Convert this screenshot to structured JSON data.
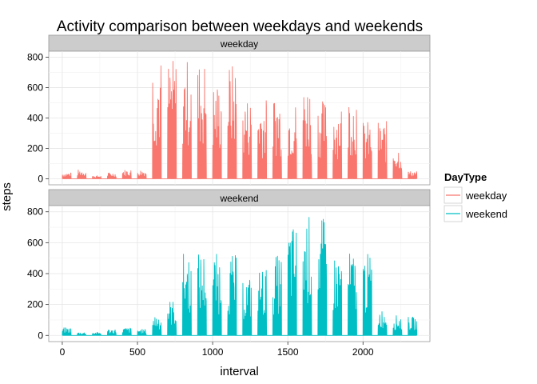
{
  "chart_data": {
    "type": "line",
    "title": "Activity comparison between weekdays and weekends",
    "xlabel": "interval",
    "ylabel": "steps",
    "xlim": [
      -90,
      2445
    ],
    "ylim": [
      -40,
      840
    ],
    "x_ticks": [
      0,
      500,
      1000,
      1500,
      2000
    ],
    "y_ticks": [
      0,
      200,
      400,
      600,
      800
    ],
    "grid": true,
    "facets": [
      "weekday",
      "weekend"
    ],
    "legend": {
      "title": "DayType",
      "position": "right"
    },
    "series": [
      {
        "name": "weekday",
        "color": "#F8766D",
        "facet": "weekday",
        "blocks": [
          [
            0,
            55,
            40
          ],
          [
            100,
            155,
            60
          ],
          [
            200,
            255,
            20
          ],
          [
            300,
            355,
            40
          ],
          [
            400,
            455,
            60
          ],
          [
            500,
            555,
            60
          ],
          [
            600,
            655,
            800
          ],
          [
            700,
            755,
            790
          ],
          [
            800,
            855,
            790
          ],
          [
            900,
            955,
            780
          ],
          [
            1000,
            1055,
            640
          ],
          [
            1100,
            1155,
            760
          ],
          [
            1200,
            1255,
            540
          ],
          [
            1300,
            1355,
            530
          ],
          [
            1400,
            1455,
            560
          ],
          [
            1500,
            1555,
            510
          ],
          [
            1600,
            1655,
            640
          ],
          [
            1700,
            1755,
            520
          ],
          [
            1800,
            1855,
            500
          ],
          [
            1900,
            1955,
            580
          ],
          [
            2000,
            2055,
            380
          ],
          [
            2100,
            2155,
            380
          ],
          [
            2200,
            2255,
            220
          ],
          [
            2300,
            2355,
            50
          ]
        ]
      },
      {
        "name": "weekend",
        "color": "#00BFC4",
        "facet": "weekend",
        "blocks": [
          [
            0,
            55,
            50
          ],
          [
            100,
            155,
            20
          ],
          [
            200,
            255,
            20
          ],
          [
            300,
            355,
            40
          ],
          [
            400,
            455,
            50
          ],
          [
            500,
            555,
            40
          ],
          [
            600,
            655,
            140
          ],
          [
            700,
            755,
            230
          ],
          [
            800,
            855,
            540
          ],
          [
            900,
            955,
            540
          ],
          [
            1000,
            1055,
            530
          ],
          [
            1100,
            1155,
            520
          ],
          [
            1200,
            1255,
            380
          ],
          [
            1300,
            1355,
            440
          ],
          [
            1400,
            1455,
            520
          ],
          [
            1500,
            1555,
            720
          ],
          [
            1600,
            1655,
            780
          ],
          [
            1700,
            1755,
            760
          ],
          [
            1800,
            1855,
            530
          ],
          [
            1900,
            1955,
            540
          ],
          [
            2000,
            2055,
            530
          ],
          [
            2100,
            2155,
            170
          ],
          [
            2200,
            2255,
            130
          ],
          [
            2300,
            2355,
            120
          ]
        ]
      }
    ]
  }
}
